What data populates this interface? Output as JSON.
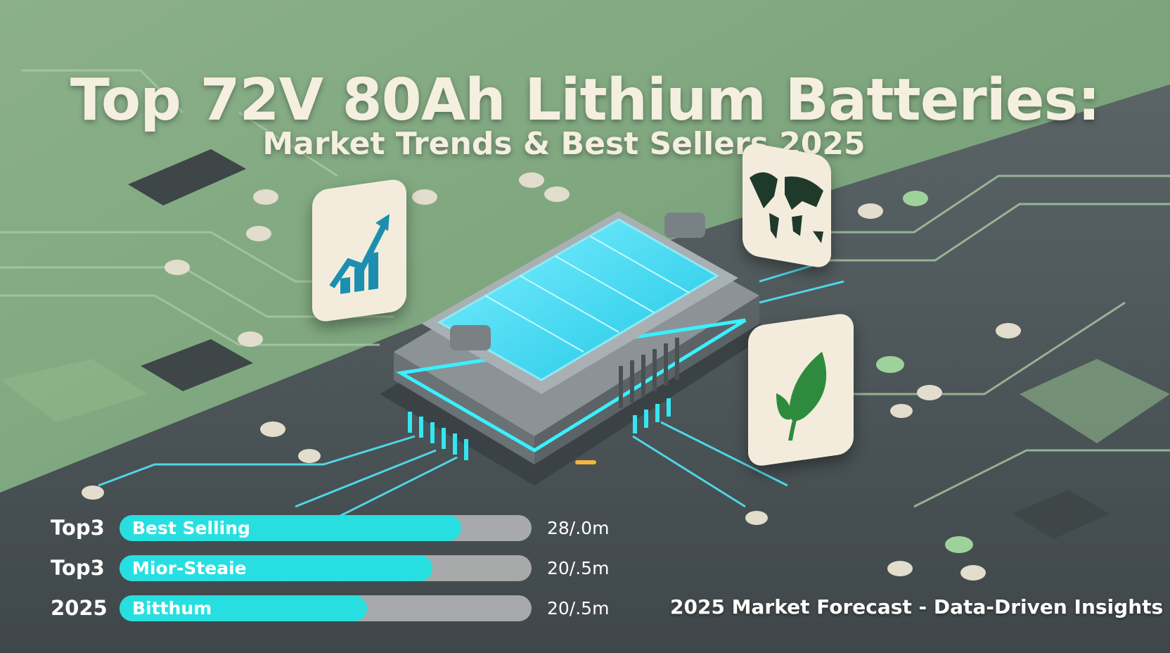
{
  "header": {
    "title": "Top 72V 80Ah Lithium Batteries:",
    "subtitle": "Market Trends & Best Sellers 2025"
  },
  "icons": [
    "growth-chart-icon",
    "world-map-icon",
    "leaf-icon",
    "battery-illustration"
  ],
  "colors": {
    "accent": "#27dfe0",
    "background_green": "#7fa47e",
    "board_dark": "#4b5457",
    "tile": "#f3ecdc",
    "leaf": "#2e8b3e",
    "chart": "#1c8fb0"
  },
  "bars": [
    {
      "label": "Top3",
      "text": "Best Selling",
      "value": "28/.0m",
      "fill_fraction": 0.83
    },
    {
      "label": "Top3",
      "text": "Mior-Steaie",
      "value": "20/.5m",
      "fill_fraction": 0.76
    },
    {
      "label": "2025",
      "text": "Bitthum",
      "value": "20/.5m",
      "fill_fraction": 0.6
    }
  ],
  "footer": "2025 Market Forecast - Data-Driven Insights"
}
